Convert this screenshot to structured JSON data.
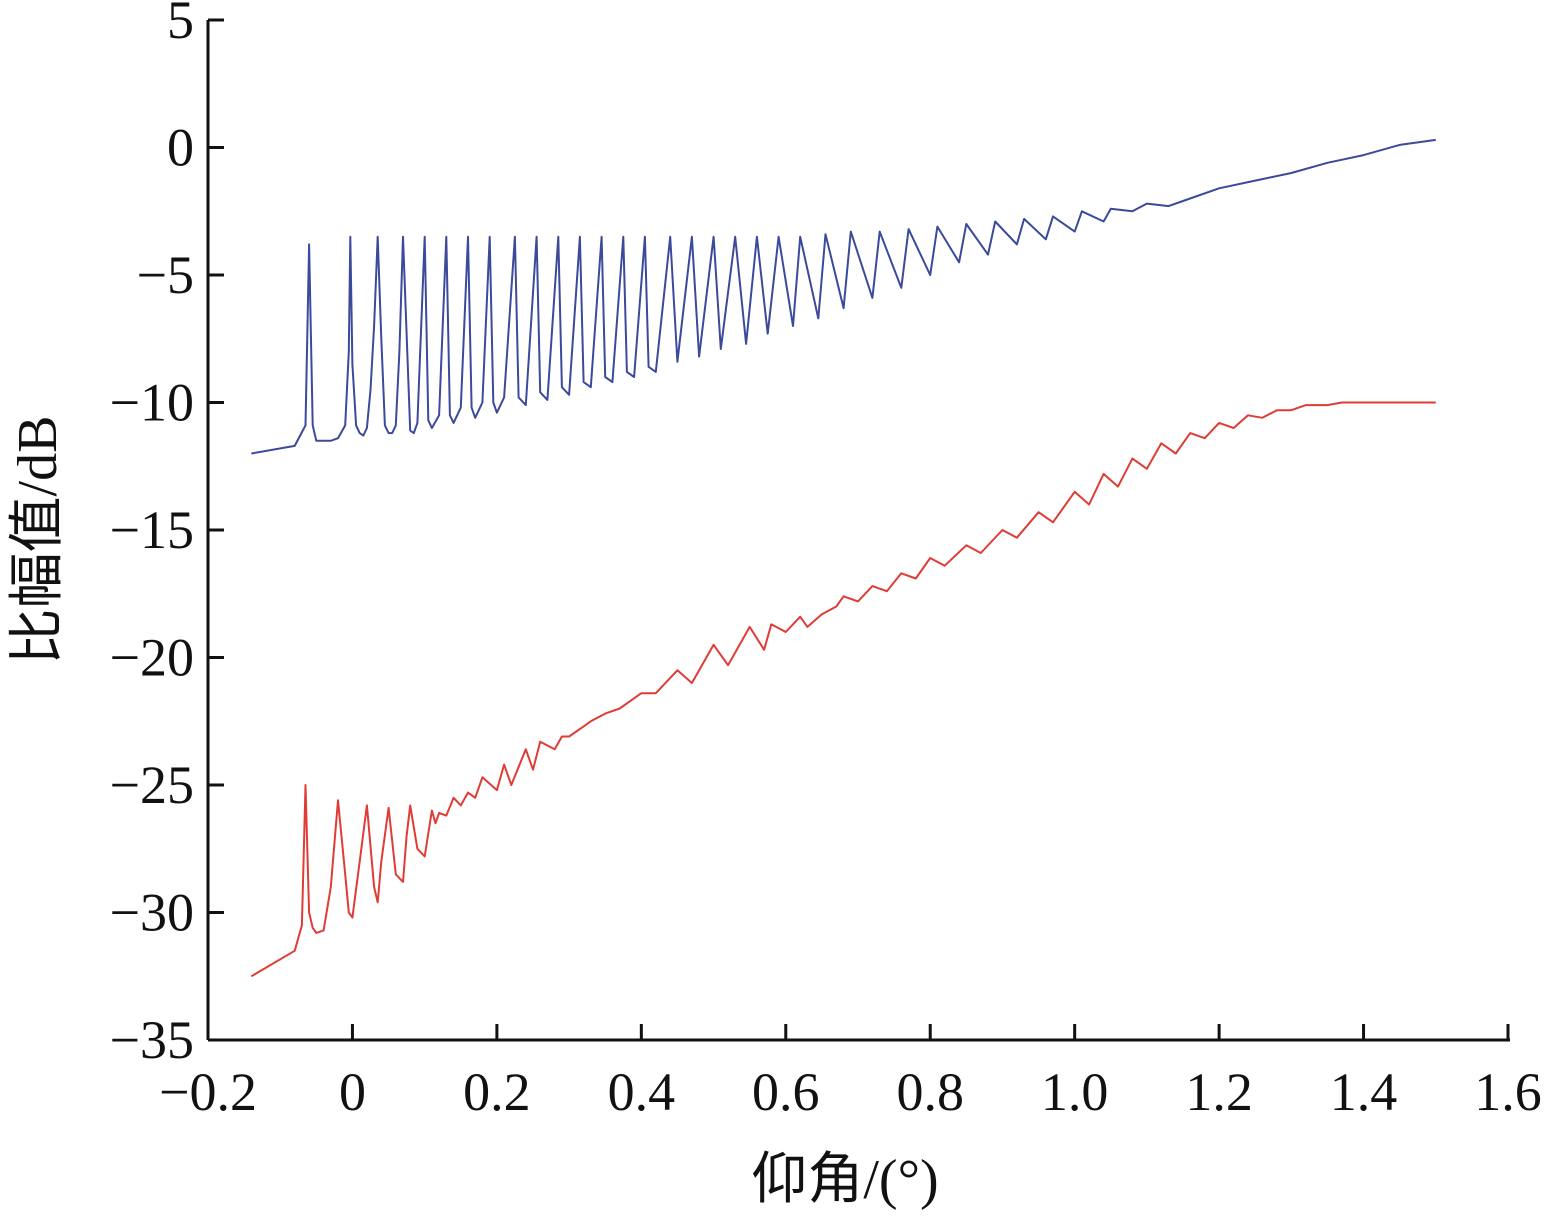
{
  "chart_data": {
    "type": "line",
    "title": "",
    "xlabel": "仰角/(°)",
    "ylabel": "比幅值/dB",
    "xlim": [
      -0.2,
      1.6
    ],
    "ylim": [
      -35,
      5
    ],
    "xticks": [
      -0.2,
      0,
      0.2,
      0.4,
      0.6,
      0.8,
      1.0,
      1.2,
      1.4,
      1.6
    ],
    "xtick_labels": [
      "−0.2",
      "0",
      "0.2",
      "0.4",
      "0.6",
      "0.8",
      "1.0",
      "1.2",
      "1.4",
      "1.6"
    ],
    "yticks": [
      5,
      0,
      -5,
      -10,
      -15,
      -20,
      -25,
      -30,
      -35
    ],
    "ytick_labels": [
      "5",
      "0",
      "−5",
      "−10",
      "−15",
      "−20",
      "−25",
      "−30",
      "−35"
    ],
    "grid": false,
    "legend": "none",
    "series": [
      {
        "color": "#3b4a9a",
        "x": [
          -0.14,
          -0.08,
          -0.065,
          -0.06,
          -0.055,
          -0.05,
          -0.04,
          -0.03,
          -0.02,
          -0.01,
          -0.005,
          -0.003,
          0.0,
          0.005,
          0.01,
          0.015,
          0.02,
          0.025,
          0.03,
          0.035,
          0.04,
          0.045,
          0.05,
          0.055,
          0.06,
          0.065,
          0.07,
          0.08,
          0.085,
          0.09,
          0.1,
          0.105,
          0.11,
          0.12,
          0.13,
          0.135,
          0.14,
          0.15,
          0.16,
          0.165,
          0.17,
          0.18,
          0.19,
          0.195,
          0.2,
          0.21,
          0.225,
          0.23,
          0.24,
          0.255,
          0.26,
          0.27,
          0.285,
          0.29,
          0.3,
          0.315,
          0.32,
          0.33,
          0.345,
          0.35,
          0.36,
          0.375,
          0.38,
          0.39,
          0.405,
          0.41,
          0.42,
          0.44,
          0.45,
          0.47,
          0.48,
          0.5,
          0.51,
          0.53,
          0.545,
          0.56,
          0.575,
          0.59,
          0.61,
          0.62,
          0.645,
          0.655,
          0.68,
          0.69,
          0.72,
          0.73,
          0.76,
          0.77,
          0.8,
          0.81,
          0.84,
          0.85,
          0.88,
          0.89,
          0.92,
          0.93,
          0.96,
          0.97,
          1.0,
          1.01,
          1.04,
          1.05,
          1.08,
          1.1,
          1.13,
          1.15,
          1.2,
          1.25,
          1.3,
          1.35,
          1.4,
          1.45,
          1.5
        ],
        "y": [
          -12.0,
          -11.7,
          -10.9,
          -3.8,
          -10.9,
          -11.5,
          -11.5,
          -11.5,
          -11.4,
          -10.9,
          -8.0,
          -3.5,
          -8.5,
          -10.9,
          -11.2,
          -11.3,
          -11.0,
          -9.5,
          -7.0,
          -3.5,
          -7.5,
          -10.9,
          -11.2,
          -11.2,
          -10.9,
          -8.0,
          -3.5,
          -11.1,
          -11.2,
          -10.8,
          -3.5,
          -10.7,
          -11.0,
          -10.5,
          -3.5,
          -10.5,
          -10.8,
          -10.2,
          -3.5,
          -10.2,
          -10.6,
          -10.0,
          -3.5,
          -10.0,
          -10.4,
          -9.8,
          -3.5,
          -9.8,
          -10.1,
          -3.5,
          -9.6,
          -9.9,
          -3.5,
          -9.4,
          -9.7,
          -3.5,
          -9.2,
          -9.4,
          -3.5,
          -9.0,
          -9.2,
          -3.5,
          -8.8,
          -9.0,
          -3.5,
          -8.6,
          -8.8,
          -3.5,
          -8.4,
          -3.5,
          -8.2,
          -3.5,
          -7.9,
          -3.5,
          -7.7,
          -3.5,
          -7.3,
          -3.5,
          -7.0,
          -3.5,
          -6.7,
          -3.4,
          -6.3,
          -3.3,
          -5.9,
          -3.3,
          -5.5,
          -3.2,
          -5.0,
          -3.1,
          -4.5,
          -3.0,
          -4.2,
          -2.9,
          -3.8,
          -2.8,
          -3.6,
          -2.7,
          -3.3,
          -2.5,
          -2.9,
          -2.4,
          -2.5,
          -2.2,
          -2.3,
          -2.1,
          -1.6,
          -1.3,
          -1.0,
          -0.6,
          -0.3,
          0.1,
          0.3
        ]
      },
      {
        "color": "#e03c36",
        "x": [
          -0.14,
          -0.08,
          -0.07,
          -0.065,
          -0.06,
          -0.055,
          -0.05,
          -0.04,
          -0.03,
          -0.02,
          -0.01,
          -0.005,
          0.0,
          0.01,
          0.02,
          0.03,
          0.035,
          0.04,
          0.05,
          0.06,
          0.07,
          0.075,
          0.08,
          0.09,
          0.1,
          0.11,
          0.115,
          0.12,
          0.13,
          0.14,
          0.15,
          0.16,
          0.17,
          0.18,
          0.2,
          0.21,
          0.22,
          0.24,
          0.25,
          0.26,
          0.28,
          0.29,
          0.3,
          0.32,
          0.33,
          0.35,
          0.37,
          0.4,
          0.42,
          0.45,
          0.47,
          0.5,
          0.52,
          0.55,
          0.57,
          0.58,
          0.6,
          0.62,
          0.63,
          0.65,
          0.67,
          0.68,
          0.7,
          0.72,
          0.74,
          0.76,
          0.78,
          0.8,
          0.82,
          0.85,
          0.87,
          0.9,
          0.92,
          0.95,
          0.97,
          1.0,
          1.02,
          1.04,
          1.06,
          1.08,
          1.1,
          1.12,
          1.14,
          1.16,
          1.18,
          1.2,
          1.22,
          1.24,
          1.26,
          1.28,
          1.3,
          1.32,
          1.35,
          1.37,
          1.4,
          1.42,
          1.45,
          1.5
        ],
        "y": [
          -32.5,
          -31.5,
          -30.5,
          -25.0,
          -30.0,
          -30.6,
          -30.8,
          -30.7,
          -29.0,
          -25.6,
          -28.5,
          -30.0,
          -30.2,
          -28.0,
          -25.8,
          -29.0,
          -29.6,
          -28.0,
          -25.9,
          -28.5,
          -28.8,
          -27.0,
          -25.8,
          -27.5,
          -27.8,
          -26.0,
          -26.5,
          -26.1,
          -26.2,
          -25.5,
          -25.8,
          -25.3,
          -25.5,
          -24.7,
          -25.2,
          -24.2,
          -25.0,
          -23.6,
          -24.4,
          -23.3,
          -23.6,
          -23.1,
          -23.1,
          -22.7,
          -22.5,
          -22.2,
          -22.0,
          -21.4,
          -21.4,
          -20.5,
          -21.0,
          -19.5,
          -20.3,
          -18.8,
          -19.7,
          -18.7,
          -19.0,
          -18.4,
          -18.8,
          -18.3,
          -18.0,
          -17.6,
          -17.8,
          -17.2,
          -17.4,
          -16.7,
          -16.9,
          -16.1,
          -16.4,
          -15.6,
          -15.9,
          -15.0,
          -15.3,
          -14.3,
          -14.7,
          -13.5,
          -14.0,
          -12.8,
          -13.3,
          -12.2,
          -12.6,
          -11.6,
          -12.0,
          -11.2,
          -11.4,
          -10.8,
          -11.0,
          -10.5,
          -10.6,
          -10.3,
          -10.3,
          -10.1,
          -10.1,
          -10.0,
          -10.0,
          -10.0,
          -10.0,
          -10.0
        ]
      }
    ]
  }
}
